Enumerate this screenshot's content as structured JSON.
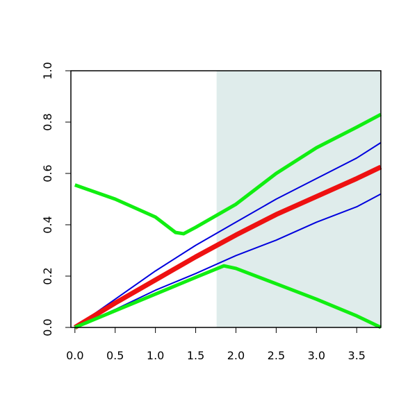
{
  "chart_data": {
    "type": "line",
    "xlim": [
      -0.05,
      3.8
    ],
    "ylim": [
      0,
      1.0
    ],
    "xticks": [
      {
        "value": 0,
        "label": "0.0"
      },
      0.5,
      {
        "value": 1,
        "label": "1.0"
      },
      1.5,
      {
        "value": 2,
        "label": "2.0"
      },
      2.5,
      {
        "value": 3,
        "label": "3.0"
      },
      3.5
    ],
    "yticks": [
      {
        "value": 0,
        "label": "0.0"
      },
      0.2,
      0.4,
      0.6,
      0.8,
      {
        "value": 1,
        "label": "1.0"
      }
    ],
    "shaded_from": 1.76,
    "shade_color": "#dfeceb",
    "series": [
      {
        "color": "#0000dd",
        "width": 2,
        "x": [
          0,
          0.5,
          1,
          1.5,
          2,
          2.5,
          3,
          3.5,
          3.8
        ],
        "values": [
          0,
          0.11,
          0.22,
          0.32,
          0.41,
          0.5,
          0.58,
          0.66,
          0.72
        ]
      },
      {
        "color": "#0000dd",
        "width": 2,
        "x": [
          0,
          0.5,
          1,
          1.5,
          2,
          2.5,
          3,
          3.5,
          3.8
        ],
        "values": [
          0,
          0.07,
          0.145,
          0.21,
          0.28,
          0.34,
          0.41,
          0.47,
          0.52
        ]
      },
      {
        "color": "#ee1111",
        "width": 7,
        "x": [
          0,
          0.5,
          1,
          1.5,
          2,
          2.5,
          3,
          3.5,
          3.8
        ],
        "values": [
          0,
          0.095,
          0.185,
          0.275,
          0.36,
          0.44,
          0.51,
          0.58,
          0.625
        ]
      },
      {
        "color": "#11ee11",
        "width": 5,
        "x": [
          0,
          0.5,
          1,
          1.25,
          1.35,
          1.5,
          2,
          2.5,
          3,
          3.5,
          3.8
        ],
        "values": [
          0.555,
          0.5,
          0.43,
          0.37,
          0.365,
          0.39,
          0.48,
          0.6,
          0.7,
          0.78,
          0.83
        ]
      },
      {
        "color": "#11ee11",
        "width": 5,
        "x": [
          0,
          0.5,
          1,
          1.5,
          1.85,
          2,
          2.5,
          3,
          3.5,
          3.8
        ],
        "values": [
          0,
          0.065,
          0.13,
          0.195,
          0.24,
          0.23,
          0.17,
          0.11,
          0.045,
          0
        ]
      }
    ]
  }
}
